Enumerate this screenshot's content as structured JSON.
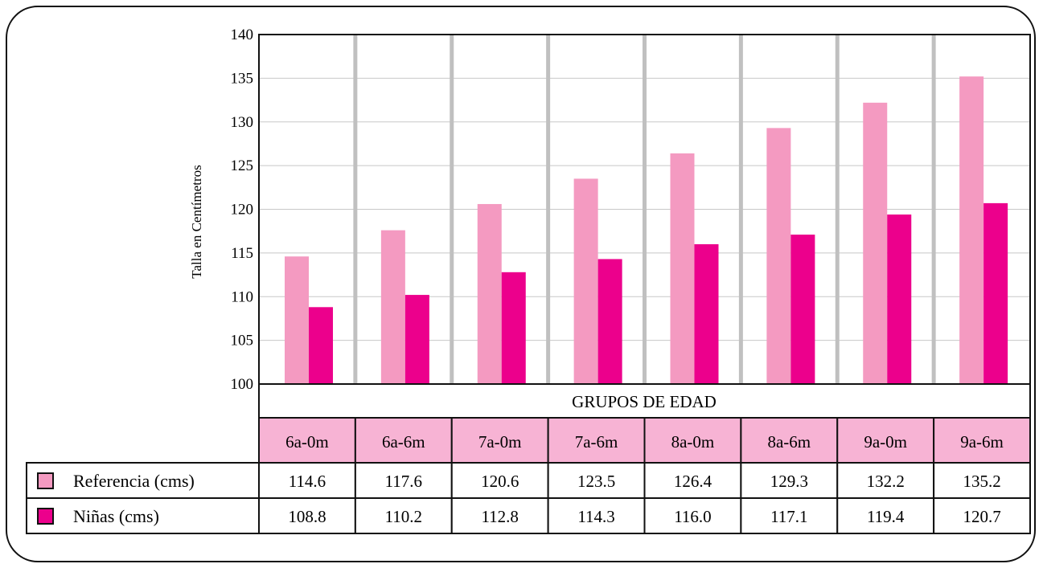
{
  "chart_data": {
    "type": "bar",
    "title": "",
    "xlabel": "GRUPOS DE EDAD",
    "ylabel": "Talla en Centímetros",
    "ylim": [
      100,
      140
    ],
    "yticks": [
      100,
      105,
      110,
      115,
      120,
      125,
      130,
      135,
      140
    ],
    "grid": true,
    "categories": [
      "6a-0m",
      "6a-6m",
      "7a-0m",
      "7a-6m",
      "8a-0m",
      "8a-6m",
      "9a-0m",
      "9a-6m"
    ],
    "series": [
      {
        "name": "Referencia (cms)",
        "color": "#f49ac1",
        "values": [
          114.6,
          117.6,
          120.6,
          123.5,
          126.4,
          129.3,
          132.2,
          135.2
        ]
      },
      {
        "name": "Niñas (cms)",
        "color": "#ec008c",
        "values": [
          108.8,
          110.2,
          112.8,
          114.3,
          116.0,
          117.1,
          119.4,
          120.7
        ]
      }
    ],
    "table": {
      "rows": [
        {
          "label": "Referencia (cms)",
          "cells": [
            "114.6",
            "117.6",
            "120.6",
            "123.5",
            "126.4",
            "129.3",
            "132.2",
            "135.2"
          ]
        },
        {
          "label": "Niñas (cms)",
          "cells": [
            "108.8",
            "110.2",
            "112.8",
            "114.3",
            "116.0",
            "117.1",
            "119.4",
            "120.7"
          ]
        }
      ]
    },
    "colors": {
      "header_fill": "#f7b3d4",
      "separator": "#c0c0c0",
      "grid": "#c8c8c8"
    }
  }
}
